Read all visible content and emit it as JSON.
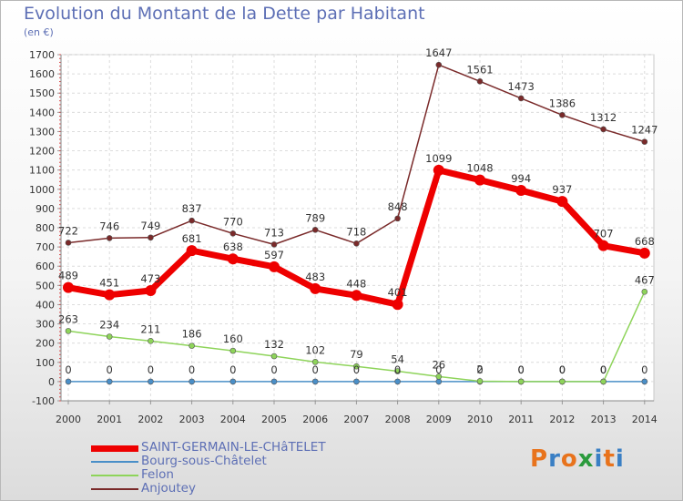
{
  "header": {
    "title": "Evolution du Montant de la Dette par Habitant",
    "subtitle": "(en €)"
  },
  "logo": {
    "letters": [
      "P",
      "r",
      "o",
      "x",
      "i",
      "t",
      "i"
    ],
    "colors": [
      "#e8731c",
      "#3a7fc4",
      "#e8731c",
      "#2a9a3c",
      "#3a7fc4",
      "#e8731c",
      "#3a7fc4"
    ]
  },
  "chart_data": {
    "type": "line",
    "x": [
      2000,
      2001,
      2002,
      2003,
      2004,
      2005,
      2006,
      2007,
      2008,
      2009,
      2010,
      2011,
      2012,
      2013,
      2014
    ],
    "ylim": [
      -100,
      1700
    ],
    "yticks": [
      -100,
      0,
      100,
      200,
      300,
      400,
      500,
      600,
      700,
      800,
      900,
      1000,
      1100,
      1200,
      1300,
      1400,
      1500,
      1600,
      1700
    ],
    "grid": true,
    "legend_position": "bottom-left",
    "series": [
      {
        "name": "SAINT-GERMAIN-LE-CHâTELET",
        "color": "#ee0000",
        "values": [
          489,
          451,
          473,
          681,
          638,
          597,
          483,
          448,
          401,
          1099,
          1048,
          994,
          937,
          707,
          668
        ],
        "labels": [
          "489",
          "451",
          "473",
          "681",
          "638",
          "597",
          "483",
          "448",
          "401",
          "1099",
          "1048",
          "994",
          "937",
          "707",
          "668"
        ]
      },
      {
        "name": "Bourg-sous-Châtelet",
        "color": "#4a8fc8",
        "values": [
          0,
          0,
          0,
          0,
          0,
          0,
          0,
          0,
          0,
          0,
          0,
          0,
          0,
          0,
          0
        ],
        "labels": [
          "0",
          "0",
          "0",
          "0",
          "0",
          "0",
          "0",
          "0",
          "0",
          "0",
          "0",
          "0",
          "0",
          "0",
          "0"
        ]
      },
      {
        "name": "Felon",
        "color": "#8ed45a",
        "values": [
          263,
          234,
          211,
          186,
          160,
          132,
          102,
          79,
          54,
          26,
          2,
          0,
          0,
          0,
          467
        ],
        "labels": [
          "263",
          "234",
          "211",
          "186",
          "160",
          "132",
          "102",
          "79",
          "54",
          "26",
          "2",
          "0",
          "0",
          "0",
          "467"
        ]
      },
      {
        "name": "Anjoutey",
        "color": "#7a2a2a",
        "values": [
          722,
          746,
          749,
          837,
          770,
          713,
          789,
          718,
          848,
          1647,
          1561,
          1473,
          1386,
          1312,
          1247
        ],
        "labels": [
          "722",
          "746",
          "749",
          "837",
          "770",
          "713",
          "789",
          "718",
          "848",
          "1647",
          "1561",
          "1473",
          "1386",
          "1312",
          "1247"
        ]
      }
    ]
  }
}
